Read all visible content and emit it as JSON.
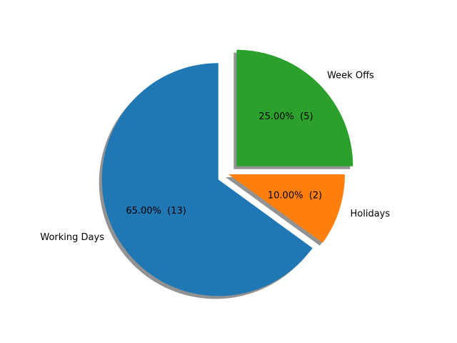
{
  "chart_data": {
    "type": "pie",
    "title": "",
    "slices": [
      {
        "label": "Working Days",
        "value": 13,
        "percent_text": "65.00%  (13)",
        "color": "#1f77b4",
        "exploded": true
      },
      {
        "label": "Holidays",
        "value": 2,
        "percent_text": "10.00%  (2)",
        "color": "#ff7f0e",
        "exploded": false
      },
      {
        "label": "Week Offs",
        "value": 5,
        "percent_text": "25.00%  (5)",
        "color": "#2ca02c",
        "exploded": true
      }
    ],
    "start_angle_deg": 90,
    "direction": "counterclockwise",
    "shadow": true,
    "legend": "none"
  }
}
